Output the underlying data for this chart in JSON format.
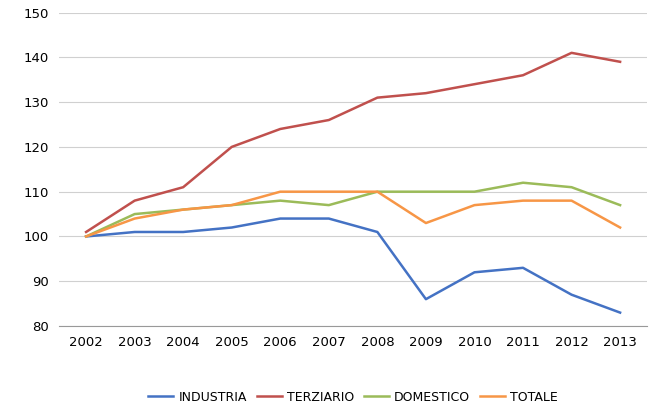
{
  "years": [
    2002,
    2003,
    2004,
    2005,
    2006,
    2007,
    2008,
    2009,
    2010,
    2011,
    2012,
    2013
  ],
  "industria": [
    100,
    101,
    101,
    102,
    104,
    104,
    101,
    86,
    92,
    93,
    87,
    83
  ],
  "terziario": [
    101,
    108,
    111,
    120,
    124,
    126,
    131,
    132,
    134,
    136,
    141,
    139
  ],
  "domestico": [
    100,
    105,
    106,
    107,
    108,
    107,
    110,
    110,
    110,
    112,
    111,
    107
  ],
  "totale": [
    100,
    104,
    106,
    107,
    110,
    110,
    110,
    103,
    107,
    108,
    108,
    102
  ],
  "colors": {
    "industria": "#4472C4",
    "terziario": "#C0504D",
    "domestico": "#9BBB59",
    "totale": "#F79646"
  },
  "legend_labels": [
    "INDUSTRIA",
    "TERZIARIO",
    "DOMESTICO",
    "TOTALE"
  ],
  "ylim": [
    80,
    150
  ],
  "yticks": [
    80,
    90,
    100,
    110,
    120,
    130,
    140,
    150
  ],
  "linewidth": 1.8,
  "background_color": "#FFFFFF",
  "grid_color": "#D0D0D0",
  "tick_fontsize": 9.5,
  "legend_fontsize": 9
}
